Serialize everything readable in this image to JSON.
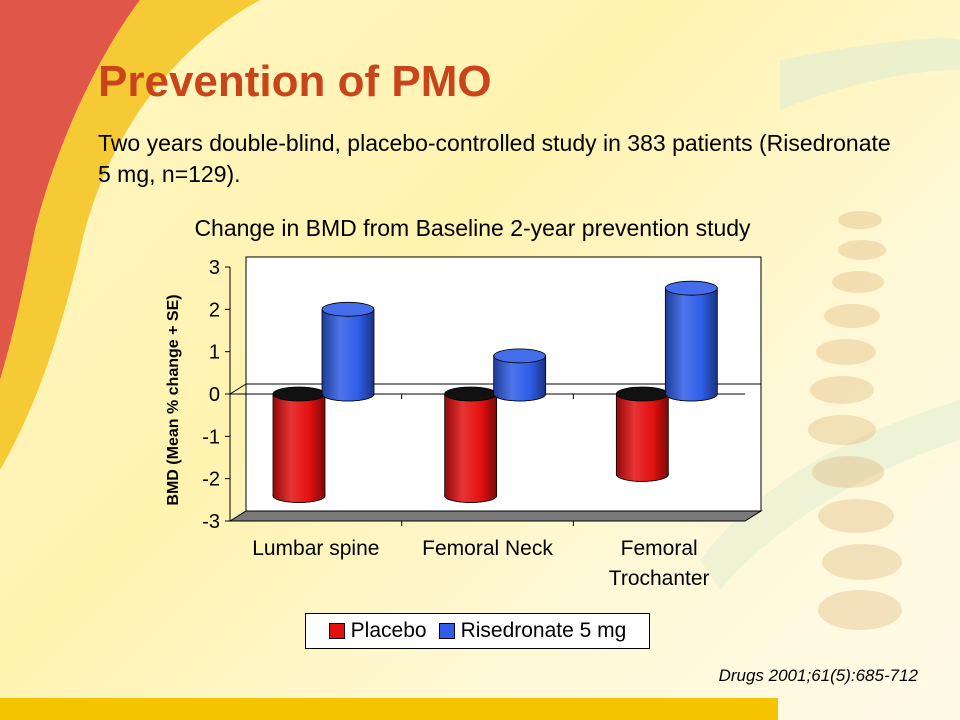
{
  "slide": {
    "title": "Prevention of PMO",
    "subtitle": "Two years double-blind, placebo-controlled study in 383 patients (Risedronate 5 mg, n=129).",
    "citation": "Drugs 2001;61(5):685-712"
  },
  "colors": {
    "title": "#c8441b",
    "placebo": "#e31010",
    "risedronate": "#2f5de8",
    "accent_red": "#e0574a",
    "bottom_bar": "#f5c400"
  },
  "chart_data": {
    "type": "bar",
    "title": "Change in BMD from Baseline 2-year prevention study",
    "ylabel": "BMD (Mean % change + SE)",
    "xlabel": "",
    "ylim": [
      -3,
      3
    ],
    "yticks": [
      3,
      2,
      1,
      0,
      -1,
      -2,
      -3
    ],
    "categories": [
      {
        "lines": [
          "Lumbar spine"
        ]
      },
      {
        "lines": [
          "Femoral Neck"
        ]
      },
      {
        "lines": [
          "Femoral",
          "Trochanter"
        ]
      }
    ],
    "series": [
      {
        "name": "Placebo",
        "values": [
          -2.4,
          -2.4,
          -1.9
        ]
      },
      {
        "name": "Risedronate 5 mg",
        "values": [
          2.0,
          0.9,
          2.5
        ]
      }
    ],
    "grid": false,
    "legend": "bottom",
    "style": "3d-cylinder"
  }
}
